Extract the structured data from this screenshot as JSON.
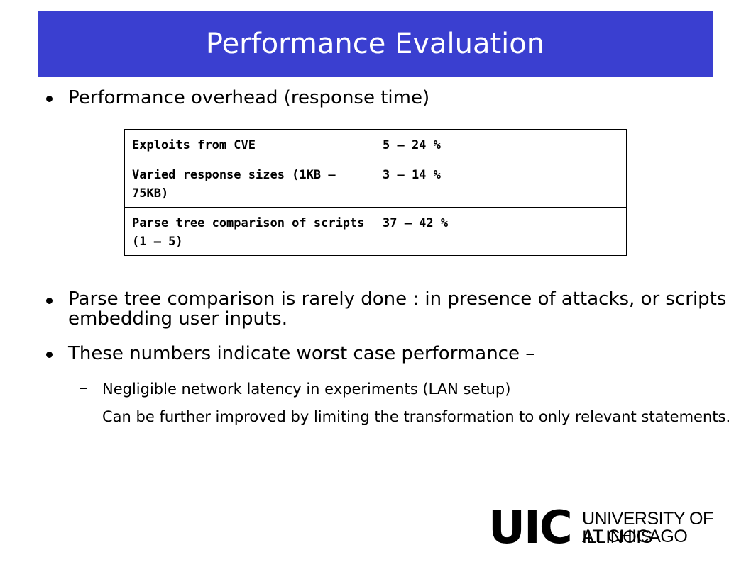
{
  "slide": {
    "title": "Performance Evaluation",
    "bullets": [
      {
        "text": "Performance overhead (response time)"
      },
      {
        "text": "Parse tree comparison is rarely done : in presence of attacks, or scripts embedding user inputs."
      },
      {
        "text": "These numbers indicate worst case performance –"
      }
    ],
    "subbullets": [
      {
        "text": "Negligible network latency in experiments (LAN setup)"
      },
      {
        "text": "Can be further improved by limiting the transformation to only relevant statements."
      }
    ],
    "table": {
      "rows": [
        {
          "label": "Exploits from CVE",
          "value": "5 – 24 %"
        },
        {
          "label": "Varied response sizes (1KB – 75KB)",
          "value": "3 – 14 %"
        },
        {
          "label": "Parse tree comparison of scripts (1 – 5)",
          "value": "37 – 42 %"
        }
      ]
    },
    "logo": {
      "mark": "UIC",
      "line1": "UNIVERSITY OF ILLINOIS",
      "line2": "AT CHICAGO"
    }
  }
}
